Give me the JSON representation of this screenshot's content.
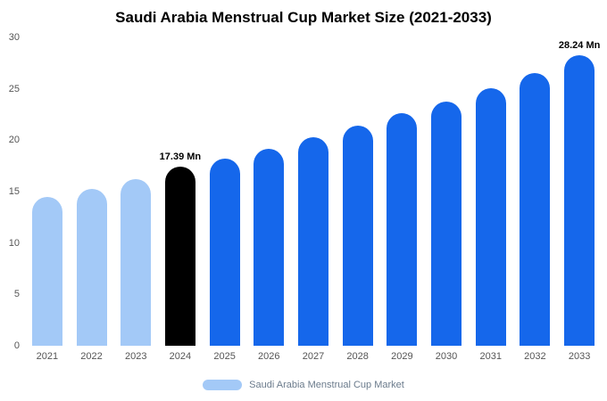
{
  "chart_data": {
    "type": "bar",
    "title": "Saudi Arabia Menstrual Cup Market Size (2021-2033)",
    "categories": [
      "2021",
      "2022",
      "2023",
      "2024",
      "2025",
      "2026",
      "2027",
      "2028",
      "2029",
      "2030",
      "2031",
      "2032",
      "2033"
    ],
    "values": [
      14.5,
      15.3,
      16.2,
      17.39,
      18.2,
      19.2,
      20.3,
      21.4,
      22.6,
      23.8,
      25.1,
      26.5,
      28.24
    ],
    "bar_colors": [
      "light",
      "light",
      "light",
      "black",
      "blue",
      "blue",
      "blue",
      "blue",
      "blue",
      "blue",
      "blue",
      "blue",
      "blue"
    ],
    "data_labels": [
      "",
      "",
      "",
      "17.39 Mn",
      "",
      "",
      "",
      "",
      "",
      "",
      "",
      "",
      "28.24 Mn"
    ],
    "ylim": [
      0,
      30
    ],
    "yticks": [
      0,
      5,
      10,
      15,
      20,
      25,
      30
    ],
    "xlabel": "",
    "ylabel": "",
    "grid": false,
    "legend_position": "bottom",
    "legend_label": "Saudi Arabia Menstrual Cup Market"
  },
  "colors": {
    "light": "#A3C9F7",
    "blue": "#1567EB",
    "black": "#000000",
    "axis_text": "#555555",
    "legend_text": "#6B7B8C"
  }
}
